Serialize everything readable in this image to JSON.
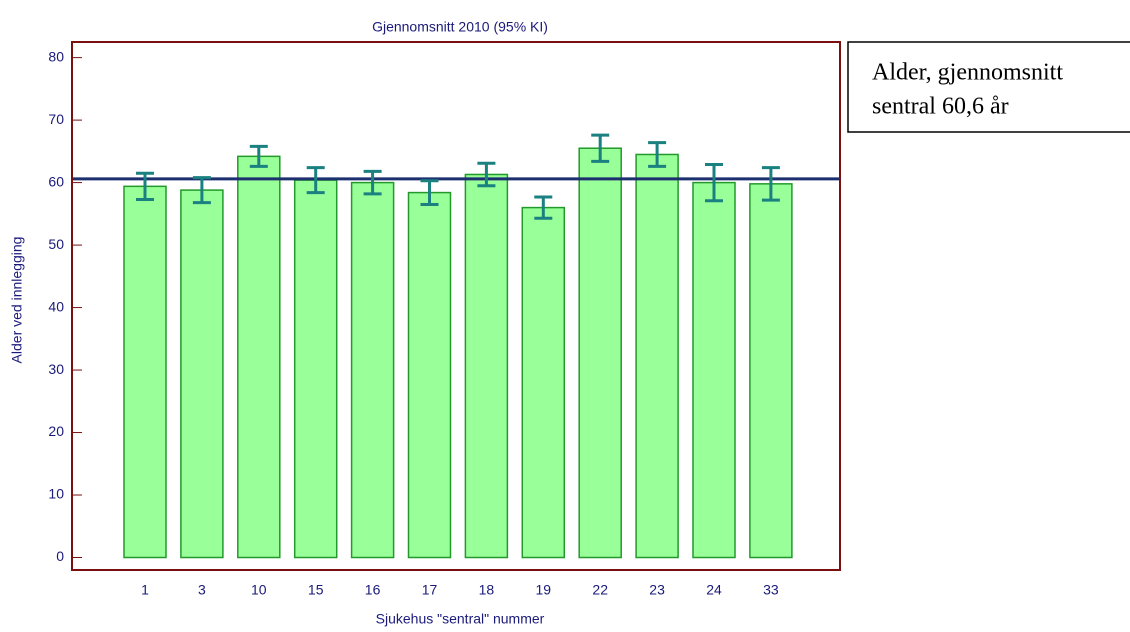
{
  "chart_data": {
    "type": "bar",
    "title": "Gjennomsnitt 2010 (95% KI)",
    "x_label": "Sjukehus \"sentral\" nummer",
    "y_label": "Alder ved innlegging",
    "categories": [
      "1",
      "3",
      "10",
      "15",
      "16",
      "17",
      "18",
      "19",
      "22",
      "23",
      "24",
      "33"
    ],
    "values": [
      59.4,
      58.8,
      64.2,
      60.4,
      60.0,
      58.4,
      61.3,
      56.0,
      65.5,
      64.5,
      60.0,
      59.8
    ],
    "error": [
      2.1,
      2.0,
      1.6,
      2.0,
      1.8,
      1.9,
      1.8,
      1.7,
      2.1,
      1.9,
      2.9,
      2.6
    ],
    "color": "#99ff99",
    "error_color": "#1a8080",
    "reference_line": 60.6,
    "reference_color": "#1c2f6e",
    "ylim": [
      -2,
      82.5
    ],
    "yticks": [
      0,
      10,
      20,
      30,
      40,
      50,
      60,
      70,
      80
    ],
    "annotation": [
      "Alder, gjennomsnitt",
      "sentral 60,6 år"
    ]
  }
}
